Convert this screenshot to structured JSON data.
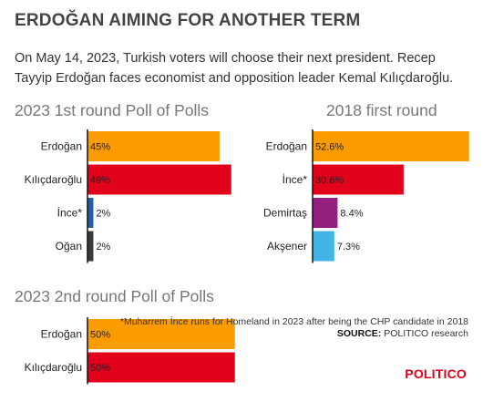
{
  "headline": "ERDOĞAN AIMING FOR ANOTHER TERM",
  "intro": "On May 14, 2023, Turkish voters will choose their next president. Recep Tayyip Erdoğan faces economist and opposition leader Kemal Kılıçdaroğlu.",
  "colors": {
    "erdogan": "#fd9c00",
    "kilicdaroglu": "#e2001a",
    "ince": "#1f5ea8",
    "ogan": "#3a3a3a",
    "demirtas": "#93207f",
    "aksener": "#41b6e6",
    "axis": "#111111"
  },
  "note": {
    "text": "*Muharrem İnce runs for Homeland in 2023 after being the CHP candidate in 2018",
    "source_label": "SOURCE:",
    "source_value": " POLITICO research"
  },
  "brand": "POLITICO",
  "chart_data": [
    {
      "type": "bar",
      "orientation": "horizontal",
      "title": "2023 1st round Poll of Polls",
      "categories": [
        "Erdoğan",
        "Kılıçdaroğlu",
        "İnce*",
        "Oğan"
      ],
      "values": [
        45,
        49,
        2,
        2
      ],
      "value_labels": [
        "45%",
        "49%",
        "2%",
        "2%"
      ],
      "colors": [
        "#fd9c00",
        "#e2001a",
        "#1f5ea8",
        "#3a3a3a"
      ],
      "xlim": [
        0,
        50
      ]
    },
    {
      "type": "bar",
      "orientation": "horizontal",
      "title": "2018 first round",
      "categories": [
        "Erdoğan",
        "İnce*",
        "Demirtaş",
        "Akşener"
      ],
      "values": [
        52.6,
        30.6,
        8.4,
        7.3
      ],
      "value_labels": [
        "52.6%",
        "30.6%",
        "8.4%",
        "7.3%"
      ],
      "colors": [
        "#fd9c00",
        "#e2001a",
        "#93207f",
        "#41b6e6"
      ],
      "xlim": [
        0,
        53
      ]
    },
    {
      "type": "bar",
      "orientation": "horizontal",
      "title": "2023 2nd round Poll of Polls",
      "categories": [
        "Erdoğan",
        "Kılıçdaroğlu"
      ],
      "values": [
        50,
        50
      ],
      "value_labels": [
        "50%",
        "50%"
      ],
      "colors": [
        "#fd9c00",
        "#e2001a"
      ],
      "xlim": [
        0,
        51
      ]
    }
  ]
}
